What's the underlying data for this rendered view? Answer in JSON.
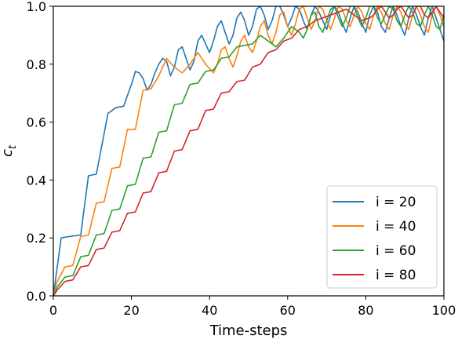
{
  "chart_data": {
    "type": "line",
    "title": "",
    "xlabel": "Time-steps",
    "ylabel": "c",
    "ylabel_subscript": "t",
    "xlim": [
      0,
      100
    ],
    "ylim": [
      0.0,
      1.0
    ],
    "xticks": [
      0,
      20,
      40,
      60,
      80,
      100
    ],
    "yticks": [
      0.0,
      0.2,
      0.4,
      0.6,
      0.8,
      1.0
    ],
    "xtick_labels": [
      "0",
      "20",
      "40",
      "60",
      "80",
      "100"
    ],
    "ytick_labels": [
      "0.0",
      "0.2",
      "0.4",
      "0.6",
      "0.8",
      "1.0"
    ],
    "grid": false,
    "legend_position": "lower-right",
    "series": [
      {
        "name": "i = 20",
        "color": "#1f77b4",
        "x": [
          0,
          2,
          4,
          7,
          9,
          11,
          14,
          16,
          18,
          20,
          21,
          22,
          23,
          24,
          25,
          26,
          27,
          28,
          29,
          30,
          31,
          32,
          33,
          34,
          35,
          36,
          37,
          38,
          39,
          40,
          41,
          42,
          43,
          44,
          45,
          46,
          47,
          48,
          49,
          50,
          51,
          52,
          53,
          54,
          55,
          56,
          57,
          58,
          59,
          60,
          61,
          62,
          63,
          64,
          65,
          66,
          67,
          68,
          69,
          70,
          71,
          72,
          73,
          74,
          75,
          76,
          77,
          78,
          79,
          80,
          81,
          82,
          83,
          84,
          85,
          86,
          87,
          88,
          89,
          90,
          91,
          92,
          93,
          94,
          95,
          96,
          97,
          98,
          99,
          100
        ],
        "values": [
          0.0,
          0.2,
          0.205,
          0.21,
          0.415,
          0.42,
          0.63,
          0.65,
          0.655,
          0.73,
          0.775,
          0.77,
          0.75,
          0.71,
          0.73,
          0.77,
          0.8,
          0.82,
          0.81,
          0.76,
          0.79,
          0.85,
          0.86,
          0.82,
          0.78,
          0.81,
          0.88,
          0.9,
          0.87,
          0.84,
          0.88,
          0.93,
          0.95,
          0.91,
          0.87,
          0.9,
          0.96,
          0.98,
          0.95,
          0.9,
          0.93,
          0.99,
          1.0,
          0.97,
          0.92,
          0.95,
          1.0,
          1.0,
          0.97,
          0.93,
          0.96,
          1.0,
          0.99,
          0.95,
          0.92,
          0.97,
          1.0,
          0.98,
          0.95,
          0.92,
          0.97,
          1.0,
          0.98,
          0.94,
          0.91,
          0.96,
          1.0,
          0.98,
          0.94,
          0.91,
          0.97,
          1.0,
          0.98,
          0.93,
          0.91,
          0.96,
          1.0,
          0.97,
          0.93,
          0.9,
          0.96,
          1.0,
          0.97,
          0.93,
          0.9,
          0.96,
          1.0,
          0.96,
          0.92,
          0.88
        ]
      },
      {
        "name": "i = 40",
        "color": "#ff7f0e",
        "x": [
          0,
          1,
          3,
          5,
          7,
          9,
          11,
          13,
          15,
          17,
          19,
          21,
          23,
          25,
          27,
          29,
          31,
          33,
          35,
          37,
          39,
          41,
          42,
          43,
          44,
          45,
          46,
          47,
          48,
          49,
          50,
          51,
          52,
          53,
          54,
          55,
          56,
          57,
          58,
          59,
          60,
          61,
          62,
          63,
          64,
          65,
          66,
          67,
          68,
          69,
          70,
          71,
          72,
          73,
          74,
          75,
          76,
          77,
          78,
          79,
          80,
          81,
          82,
          83,
          84,
          85,
          86,
          87,
          88,
          89,
          90,
          91,
          92,
          93,
          94,
          95,
          96,
          97,
          98,
          99,
          100
        ],
        "values": [
          0.0,
          0.05,
          0.1,
          0.105,
          0.205,
          0.21,
          0.32,
          0.325,
          0.44,
          0.445,
          0.575,
          0.575,
          0.71,
          0.715,
          0.76,
          0.82,
          0.79,
          0.77,
          0.8,
          0.84,
          0.8,
          0.77,
          0.8,
          0.85,
          0.86,
          0.82,
          0.79,
          0.83,
          0.88,
          0.9,
          0.86,
          0.84,
          0.88,
          0.93,
          0.95,
          0.9,
          0.87,
          0.91,
          0.97,
          0.98,
          0.93,
          0.9,
          0.94,
          0.99,
          1.0,
          0.96,
          0.92,
          0.95,
          1.0,
          0.99,
          0.95,
          0.92,
          0.96,
          1.0,
          0.99,
          0.95,
          0.93,
          0.97,
          1.0,
          0.98,
          0.94,
          0.92,
          0.97,
          1.0,
          0.98,
          0.94,
          0.92,
          0.97,
          1.0,
          0.98,
          0.94,
          0.92,
          0.97,
          1.0,
          0.97,
          0.93,
          0.91,
          0.97,
          1.0,
          0.97,
          0.93
        ]
      },
      {
        "name": "i = 60",
        "color": "#2ca02c",
        "x": [
          0,
          1,
          3,
          5,
          7,
          9,
          11,
          13,
          15,
          17,
          19,
          21,
          23,
          25,
          27,
          29,
          31,
          33,
          35,
          37,
          39,
          41,
          43,
          45,
          47,
          49,
          51,
          53,
          55,
          57,
          59,
          61,
          63,
          64,
          65,
          66,
          67,
          68,
          69,
          70,
          71,
          72,
          73,
          74,
          75,
          76,
          77,
          78,
          79,
          80,
          81,
          82,
          83,
          84,
          85,
          86,
          87,
          88,
          89,
          90,
          91,
          92,
          93,
          94,
          95,
          96,
          97,
          98,
          99,
          100
        ],
        "values": [
          0.0,
          0.03,
          0.065,
          0.07,
          0.135,
          0.14,
          0.21,
          0.215,
          0.295,
          0.3,
          0.38,
          0.385,
          0.475,
          0.48,
          0.565,
          0.57,
          0.66,
          0.665,
          0.73,
          0.735,
          0.775,
          0.78,
          0.82,
          0.825,
          0.86,
          0.865,
          0.87,
          0.9,
          0.88,
          0.86,
          0.89,
          0.93,
          0.91,
          0.89,
          0.92,
          0.97,
          0.98,
          0.93,
          0.91,
          0.95,
          0.99,
          1.0,
          0.96,
          0.93,
          0.96,
          1.0,
          1.0,
          0.96,
          0.93,
          0.96,
          1.0,
          1.0,
          0.96,
          0.94,
          0.97,
          1.0,
          0.99,
          0.95,
          0.93,
          0.97,
          1.0,
          0.98,
          0.94,
          0.93,
          0.97,
          1.0,
          0.97,
          0.93,
          0.92,
          0.97
        ]
      },
      {
        "name": "i = 80",
        "color": "#d62728",
        "x": [
          0,
          1,
          3,
          5,
          7,
          9,
          11,
          13,
          15,
          17,
          19,
          21,
          23,
          25,
          27,
          29,
          31,
          33,
          35,
          37,
          39,
          41,
          43,
          45,
          47,
          49,
          51,
          53,
          55,
          57,
          59,
          61,
          63,
          65,
          67,
          69,
          71,
          73,
          75,
          77,
          79,
          81,
          82,
          83,
          84,
          85,
          86,
          87,
          88,
          89,
          90,
          91,
          92,
          93,
          94,
          95,
          96,
          97,
          98,
          99,
          100
        ],
        "values": [
          0.0,
          0.02,
          0.05,
          0.055,
          0.1,
          0.105,
          0.16,
          0.165,
          0.22,
          0.225,
          0.285,
          0.29,
          0.355,
          0.36,
          0.425,
          0.43,
          0.5,
          0.505,
          0.57,
          0.575,
          0.64,
          0.645,
          0.7,
          0.705,
          0.74,
          0.745,
          0.79,
          0.8,
          0.84,
          0.85,
          0.88,
          0.89,
          0.92,
          0.93,
          0.95,
          0.96,
          0.97,
          0.98,
          0.99,
          0.97,
          0.95,
          0.96,
          0.97,
          0.99,
          1.0,
          0.98,
          0.96,
          0.97,
          0.99,
          1.0,
          0.98,
          0.96,
          0.97,
          1.0,
          1.0,
          0.97,
          0.96,
          0.98,
          1.0,
          0.98,
          0.96
        ]
      }
    ]
  }
}
